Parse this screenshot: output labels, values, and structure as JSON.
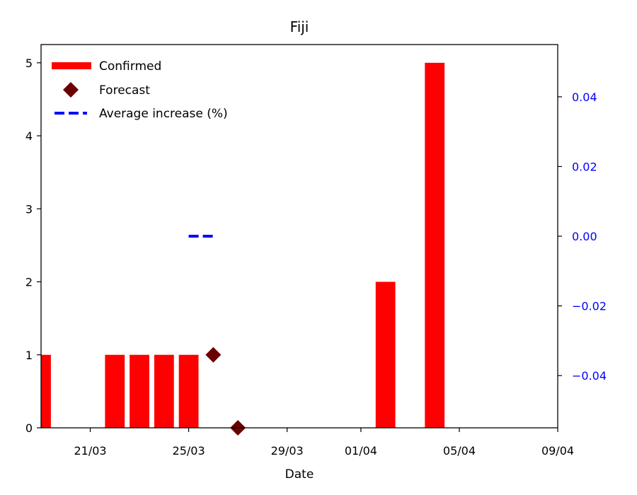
{
  "chart_data": {
    "type": "bar",
    "title": "Fiji",
    "xlabel": "Date",
    "ylabel": "",
    "ylim": [
      0,
      5.25
    ],
    "y_ticks": [
      0,
      1,
      2,
      3,
      4,
      5
    ],
    "y2lim": [
      -0.055,
      0.055
    ],
    "y2_ticks": [
      -0.04,
      -0.02,
      0.0,
      0.02,
      0.04
    ],
    "y2_tick_labels": [
      "−0.04",
      "−0.02",
      "0.00",
      "0.02",
      "0.04"
    ],
    "xlim": [
      "2020-03-19",
      "2020-04-09"
    ],
    "x_ticks": [
      "2020-03-21",
      "2020-03-25",
      "2020-03-29",
      "2020-04-01",
      "2020-04-05",
      "2020-04-09"
    ],
    "x_tick_labels": [
      "21/03",
      "25/03",
      "29/03",
      "01/04",
      "05/04",
      "09/04"
    ],
    "grid": false,
    "legend_position": "top-left",
    "series": [
      {
        "name": "Confirmed",
        "kind": "bar",
        "color": "#ff0000",
        "x": [
          "2020-03-19",
          "2020-03-22",
          "2020-03-23",
          "2020-03-24",
          "2020-03-25",
          "2020-04-02",
          "2020-04-04"
        ],
        "values": [
          1,
          1,
          1,
          1,
          1,
          2,
          5
        ]
      },
      {
        "name": "Forecast",
        "kind": "marker",
        "color": "#6b0000",
        "x": [
          "2020-03-26",
          "2020-03-27"
        ],
        "values": [
          1,
          0
        ]
      },
      {
        "name": "Average increase (%)",
        "kind": "dashed-line",
        "axis": "right",
        "color": "#0000ff",
        "x": [
          "2020-03-25",
          "2020-03-26"
        ],
        "values": [
          0.0,
          0.0
        ]
      }
    ]
  }
}
